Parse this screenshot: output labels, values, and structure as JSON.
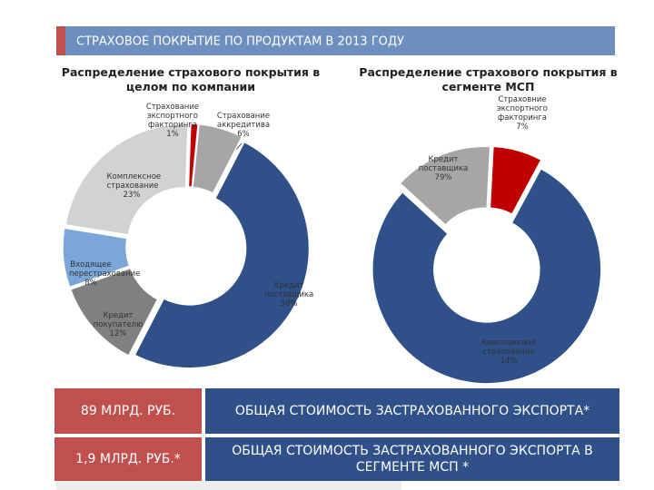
{
  "header": {
    "title": "СТРАХОВОЕ ПОКРЫТИЕ ПО ПРОДУКТАМ В 2013 ГОДУ"
  },
  "chart_data": [
    {
      "type": "donut",
      "title": "Распределение страхового покрытия в целом по компании",
      "categories": [
        "Страхование экспортного факторинга",
        "Страхование аккредитива",
        "Кредит поставщика",
        "Кредит покупателю",
        "Входящее перестрахование",
        "Комплексное страхование"
      ],
      "values": [
        1,
        6,
        50,
        12,
        8,
        23
      ],
      "value_labels": [
        "1%",
        "6%",
        "50%",
        "12%",
        "8%",
        "23%"
      ],
      "colors": [
        "#c00000",
        "#a6a6a6",
        "#2f5088",
        "#808080",
        "#7aa6d8",
        "#d2d2d2"
      ]
    },
    {
      "type": "donut",
      "title": "Распределение страхового покрытия в сегменте МСП",
      "categories": [
        "Страховние экспортного факторинга",
        "Кредит поставщика",
        "Комплексное страхование"
      ],
      "values": [
        7,
        79,
        14
      ],
      "value_labels": [
        "7%",
        "79%",
        "14%"
      ],
      "colors": [
        "#c00000",
        "#2f5088",
        "#a6a6a6"
      ]
    }
  ],
  "summary": {
    "rows": [
      [
        "89 МЛРД. РУБ.",
        "ОБЩАЯ СТОИМОСТЬ ЗАСТРАХОВАННОГО ЭКСПОРТА*"
      ],
      [
        "1,9 МЛРД. РУБ.*",
        "ОБЩАЯ СТОИМОСТЬ ЗАСТРАХОВАННОГО ЭКСПОРТА В СЕГМЕНТЕ МСП *"
      ]
    ]
  }
}
